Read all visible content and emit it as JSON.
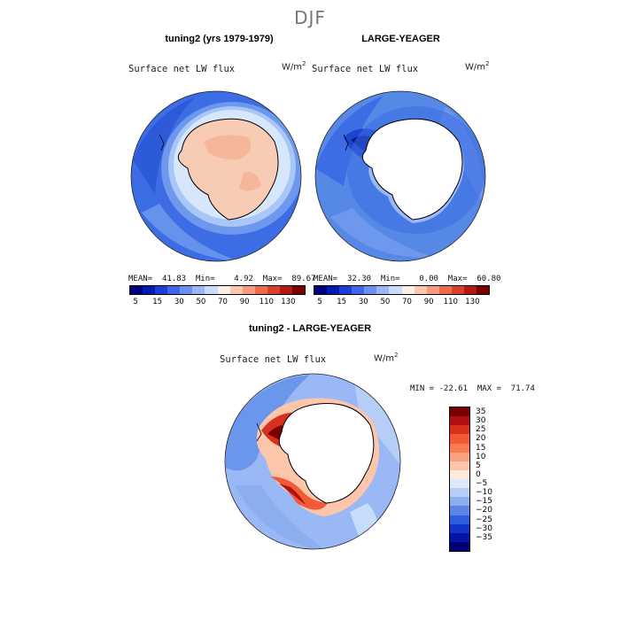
{
  "page": {
    "season": "DJF"
  },
  "panel_left": {
    "title": "tuning2 (yrs 1979-1979)",
    "field": "Surface net LW flux",
    "units": "W/m",
    "units_sup": "2",
    "stats": {
      "mean_label": "MEAN=",
      "mean": "41.83",
      "min_label": "Min=",
      "min": "4.92",
      "max_label": "Max=",
      "max": "89.67"
    }
  },
  "panel_right": {
    "title": "LARGE-YEAGER",
    "field": "Surface net LW flux",
    "units": "W/m",
    "units_sup": "2",
    "stats": {
      "mean_label": "MEAN=",
      "mean": "32.30",
      "min_label": "Min=",
      "min": "0.00",
      "max_label": "Max=",
      "max": "60.80"
    }
  },
  "panel_diff": {
    "title": "tuning2 - LARGE-YEAGER",
    "field": "Surface net LW flux",
    "units": "W/m",
    "units_sup": "2",
    "minmax": "MIN = -22.61  MAX =  71.74"
  },
  "colorbar_top": {
    "colors": [
      "#00007f",
      "#001ab3",
      "#1a3fd9",
      "#3d66e8",
      "#6a91f0",
      "#9ab8f5",
      "#c6dcfa",
      "#fbeee6",
      "#fbc6ad",
      "#f69b7c",
      "#ec6c4a",
      "#d9402a",
      "#b11a12",
      "#7a0000"
    ],
    "labels": [
      "5",
      "15",
      "30",
      "50",
      "70",
      "90",
      "110",
      "130"
    ]
  },
  "colorbar_diff": {
    "colors": [
      "#7a0000",
      "#b01012",
      "#d8301e",
      "#f05a34",
      "#f87c52",
      "#fba07e",
      "#fdc6aa",
      "#fdebdc",
      "#dde9fb",
      "#b6cdf6",
      "#8aaef0",
      "#5b86e8",
      "#2e5ee0",
      "#1334c9",
      "#0413a8",
      "#000075"
    ],
    "labels": [
      "35",
      "30",
      "25",
      "20",
      "15",
      "10",
      "5",
      "0",
      "−5",
      "−10",
      "−15",
      "−20",
      "−25",
      "−30",
      "−35"
    ]
  }
}
